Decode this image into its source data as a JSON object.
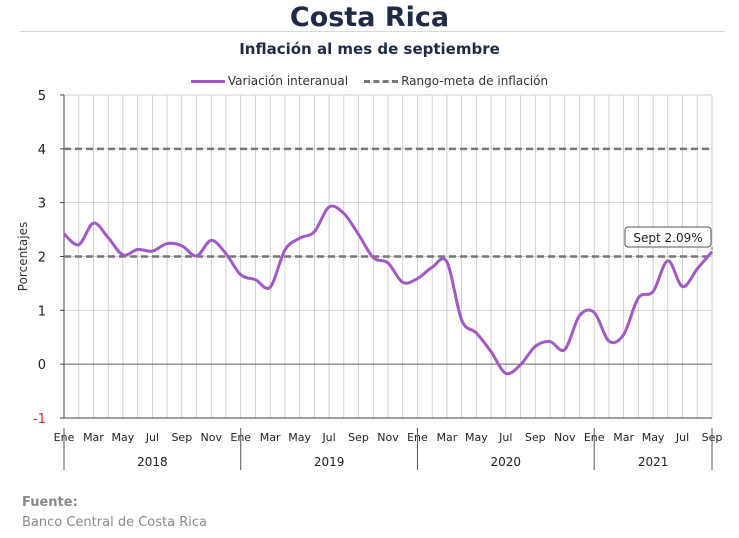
{
  "header": {
    "title": "Costa Rica",
    "subtitle": "Inflación al mes de septiembre"
  },
  "legend": {
    "series_label": "Variación interanual",
    "target_label": "Rango-meta de inflación"
  },
  "source": {
    "label": "Fuente:",
    "text": "Banco Central de Costa Rica"
  },
  "colors": {
    "series": "#a259c4",
    "target": "#777777",
    "negative_tick": "#d22f2f",
    "grid": "#bfbfbf"
  },
  "chart_data": {
    "type": "line",
    "ylabel": "Porcentajes",
    "ylim": [
      -1,
      5
    ],
    "yticks": [
      "-1",
      "0",
      "1",
      "2",
      "3",
      "4",
      "5"
    ],
    "grid": true,
    "legend_position": "top",
    "x_labels": [
      "Ene",
      "Mar",
      "May",
      "Jul",
      "Sep",
      "Nov",
      "Ene",
      "Mar",
      "May",
      "Jul",
      "Sep",
      "Nov",
      "Ene",
      "Mar",
      "May",
      "Jul",
      "Sep",
      "Nov",
      "Ene",
      "Mar",
      "May",
      "Jul",
      "Sep"
    ],
    "years": [
      "2018",
      "2019",
      "2020",
      "2021"
    ],
    "annotation": "Sept 2.09%",
    "target_band": [
      2,
      4
    ],
    "series": [
      {
        "name": "Variación interanual",
        "x": [
          "2018-01",
          "2018-02",
          "2018-03",
          "2018-04",
          "2018-05",
          "2018-06",
          "2018-07",
          "2018-08",
          "2018-09",
          "2018-10",
          "2018-11",
          "2018-12",
          "2019-01",
          "2019-02",
          "2019-03",
          "2019-04",
          "2019-05",
          "2019-06",
          "2019-07",
          "2019-08",
          "2019-09",
          "2019-10",
          "2019-11",
          "2019-12",
          "2020-01",
          "2020-02",
          "2020-03",
          "2020-04",
          "2020-05",
          "2020-06",
          "2020-07",
          "2020-08",
          "2020-09",
          "2020-10",
          "2020-11",
          "2020-12",
          "2021-01",
          "2021-02",
          "2021-03",
          "2021-04",
          "2021-05",
          "2021-06",
          "2021-07",
          "2021-08",
          "2021-09"
        ],
        "values": [
          2.42,
          2.22,
          2.62,
          2.35,
          2.03,
          2.13,
          2.1,
          2.24,
          2.2,
          2.01,
          2.3,
          2.05,
          1.66,
          1.57,
          1.43,
          2.12,
          2.34,
          2.46,
          2.92,
          2.8,
          2.41,
          1.98,
          1.88,
          1.52,
          1.59,
          1.8,
          1.9,
          0.82,
          0.58,
          0.23,
          -0.17,
          -0.01,
          0.33,
          0.42,
          0.27,
          0.9,
          0.96,
          0.43,
          0.55,
          1.23,
          1.35,
          1.92,
          1.44,
          1.77,
          2.09
        ]
      }
    ]
  }
}
